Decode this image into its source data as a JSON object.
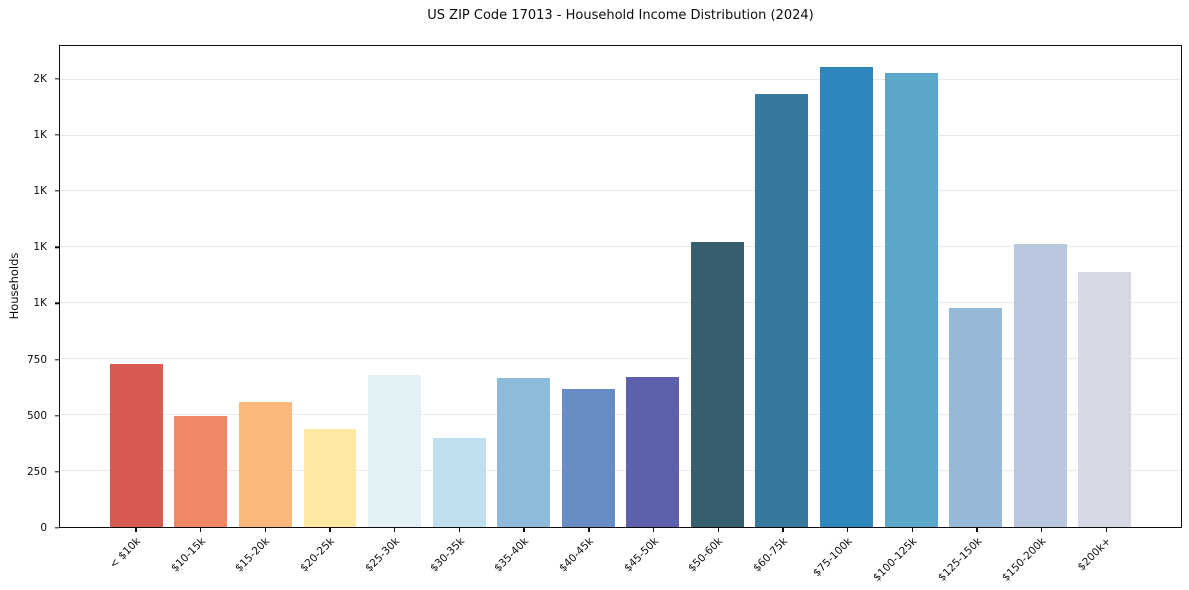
{
  "chart_data": {
    "type": "bar",
    "title": "US ZIP Code 17013 - Household Income Distribution (2024)",
    "xlabel": "",
    "ylabel": "Households",
    "categories": [
      "< $10k",
      "$10-15k",
      "$15-20k",
      "$20-25k",
      "$25-30k",
      "$30-35k",
      "$35-40k",
      "$40-45k",
      "$45-50k",
      "$50-60k",
      "$60-75k",
      "$75-100k",
      "$100-125k",
      "$125-150k",
      "$150-200k",
      "$200k+"
    ],
    "values": [
      730,
      495,
      560,
      440,
      680,
      400,
      665,
      615,
      670,
      1275,
      1935,
      2055,
      2030,
      980,
      1265,
      1140
    ],
    "bar_colors": [
      "#d85a50",
      "#f28765",
      "#fbb87a",
      "#fde8a4",
      "#e2f1f6",
      "#bedfee",
      "#8ebbdb",
      "#688dc6",
      "#5d60ad",
      "#365e6e",
      "#36799d",
      "#2e86bc",
      "#5aa7c9",
      "#96b9d8",
      "#b9c8df",
      "#d7d8e6"
    ],
    "ylim": [
      0,
      2150
    ],
    "y_ticks": [
      {
        "value": 0,
        "label": "0"
      },
      {
        "value": 250,
        "label": "250"
      },
      {
        "value": 500,
        "label": "500"
      },
      {
        "value": 750,
        "label": "750"
      },
      {
        "value": 1000,
        "label": "1K"
      },
      {
        "value": 1250,
        "label": "1K"
      },
      {
        "value": 1500,
        "label": "1K"
      },
      {
        "value": 1750,
        "label": "1K"
      },
      {
        "value": 2000,
        "label": "2K"
      }
    ],
    "grid": "horizontal-only",
    "legend": "none",
    "background": "#ffffff",
    "axis_color": "#0d0d0d",
    "gridline_color": "#e8e8e8"
  }
}
